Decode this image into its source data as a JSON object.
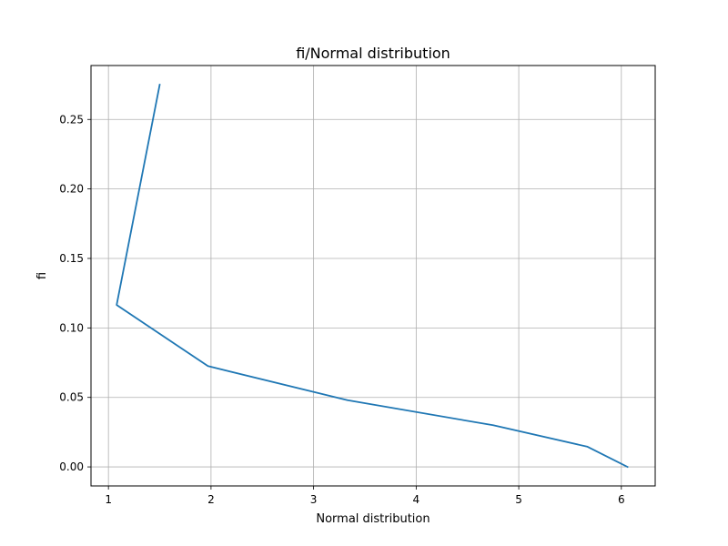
{
  "chart_data": {
    "type": "line",
    "title": "fi/Normal distribution",
    "xlabel": "Normal distribution",
    "ylabel": "fi",
    "xlim": [
      0.83,
      6.33
    ],
    "ylim": [
      -0.0137,
      0.2888
    ],
    "xticks": [
      1,
      2,
      3,
      4,
      5,
      6
    ],
    "xtick_labels": [
      "1",
      "2",
      "3",
      "4",
      "5",
      "6"
    ],
    "yticks": [
      0.0,
      0.05,
      0.1,
      0.15,
      0.2,
      0.25
    ],
    "ytick_labels": [
      "0.00",
      "0.05",
      "0.10",
      "0.15",
      "0.20",
      "0.25"
    ],
    "grid": true,
    "series": [
      {
        "color": "#1f77b4",
        "x": [
          1.5,
          1.08,
          1.97,
          3.33,
          4.75,
          5.67,
          6.06
        ],
        "y": [
          0.275,
          0.1165,
          0.0725,
          0.048,
          0.03,
          0.0145,
          0.0
        ]
      }
    ]
  }
}
